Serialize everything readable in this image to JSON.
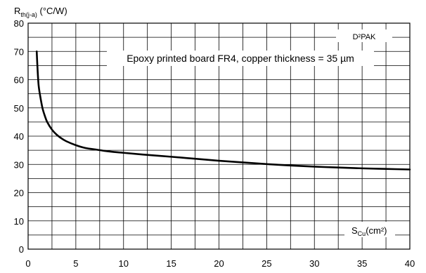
{
  "chart_data": {
    "type": "line",
    "ylabel_main": "R",
    "ylabel_sub": "th(j-a)",
    "ylabel_unit": " (°C/W)",
    "xlabel_main": "S",
    "xlabel_sub": "Cu",
    "xlabel_unit": "(cm²)",
    "package_label": "D²PAK",
    "annotation": "Epoxy printed board FR4, copper thickness = 35 µm",
    "xlim": [
      0,
      40
    ],
    "ylim": [
      0,
      80
    ],
    "x_minor_step": 2.5,
    "y_minor_step": 5,
    "x_ticks": [
      0,
      5,
      10,
      15,
      20,
      25,
      30,
      35,
      40
    ],
    "y_ticks": [
      0,
      10,
      20,
      30,
      40,
      50,
      60,
      70,
      80
    ],
    "x_tick_labels": [
      "0",
      "5",
      "10",
      "15",
      "20",
      "25",
      "30",
      "35",
      "40"
    ],
    "y_tick_labels": [
      "0",
      "10",
      "20",
      "30",
      "40",
      "50",
      "60",
      "70",
      "80"
    ],
    "grid": true,
    "series": [
      {
        "x": [
          0.9,
          1.0,
          1.1,
          1.25,
          1.5,
          1.75,
          2.0,
          2.5,
          3.0,
          3.5,
          4,
          5,
          6,
          7,
          8,
          9,
          10,
          12,
          15,
          17.5,
          20,
          22.5,
          25,
          27.5,
          30,
          32.5,
          35,
          37.5,
          40
        ],
        "y": [
          70,
          63,
          58,
          54.5,
          50,
          47.2,
          45,
          42.3,
          40.5,
          39.2,
          38.2,
          36.8,
          35.8,
          35.3,
          34.8,
          34.4,
          34.1,
          33.5,
          32.7,
          32.0,
          31.3,
          30.7,
          30.1,
          29.6,
          29.2,
          28.9,
          28.6,
          28.4,
          28.2
        ]
      }
    ],
    "colors": {
      "line": "#000000",
      "grid": "#000000",
      "background": "#ffffff"
    }
  }
}
